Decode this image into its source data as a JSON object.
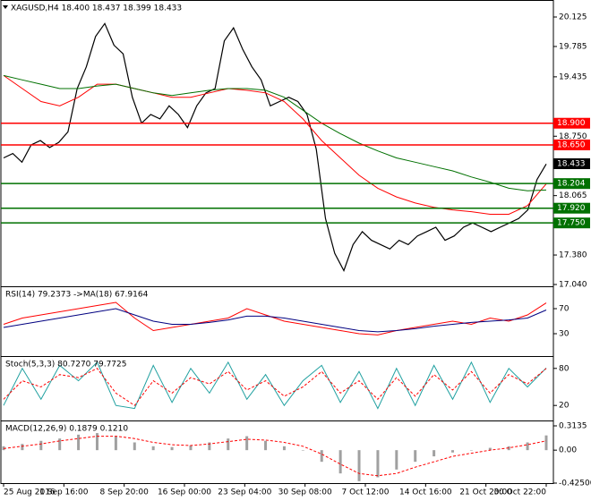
{
  "chart_data": [
    {
      "type": "line",
      "title": "XAGUSD,H4 18.400 18.437 18.399 18.433",
      "x_tick_labels": [
        "25 Aug 2016",
        "1 Sep 16:00",
        "8 Sep 20:00",
        "16 Sep 00:00",
        "23 Sep 04:00",
        "30 Sep 08:00",
        "7 Oct 12:00",
        "14 Oct 16:00",
        "21 Oct 20:00",
        "30 Oct 22:00"
      ],
      "ylim": [
        17.04,
        20.125
      ],
      "yticks": [
        20.125,
        19.785,
        19.435,
        {
          "value": 18.75,
          "label": "18.750"
        },
        18.065,
        17.725,
        {
          "value": 17.38,
          "label": "17.380"
        },
        {
          "value": 17.04,
          "label": "17.040"
        }
      ],
      "series": [
        {
          "color": "#000000",
          "values": [
            18.5,
            18.55,
            18.45,
            18.65,
            18.7,
            18.62,
            18.68,
            18.8,
            19.3,
            19.55,
            19.9,
            20.05,
            19.8,
            19.7,
            19.2,
            18.9,
            19.0,
            18.95,
            19.1,
            19.0,
            18.85,
            19.1,
            19.25,
            19.3,
            19.85,
            20.0,
            19.75,
            19.55,
            19.4,
            19.1,
            19.15,
            19.2,
            19.15,
            19.0,
            18.6,
            17.8,
            17.4,
            17.2,
            17.5,
            17.65,
            17.55,
            17.5,
            17.45,
            17.55,
            17.5,
            17.6,
            17.65,
            17.7,
            17.55,
            17.6,
            17.7,
            17.75,
            17.7,
            17.65,
            17.7,
            17.75,
            17.8,
            17.9,
            18.25,
            18.43
          ]
        },
        {
          "color": "#ff0000",
          "values": [
            19.45,
            19.3,
            19.15,
            19.1,
            19.2,
            19.35,
            19.35,
            19.3,
            19.25,
            19.2,
            19.2,
            19.25,
            19.3,
            19.28,
            19.25,
            19.15,
            18.95,
            18.7,
            18.5,
            18.3,
            18.15,
            18.05,
            17.98,
            17.93,
            17.9,
            17.88,
            17.85,
            17.85,
            17.95,
            18.2
          ]
        },
        {
          "color": "#007000",
          "values": [
            19.45,
            19.4,
            19.35,
            19.3,
            19.3,
            19.33,
            19.35,
            19.3,
            19.25,
            19.22,
            19.25,
            19.28,
            19.3,
            19.3,
            19.28,
            19.2,
            19.05,
            18.9,
            18.78,
            18.67,
            18.58,
            18.5,
            18.45,
            18.4,
            18.35,
            18.28,
            18.22,
            18.15,
            18.12,
            18.13
          ]
        }
      ],
      "levels": [
        {
          "value": 18.9,
          "label": "18.900",
          "color": "#ff0000"
        },
        {
          "value": 18.65,
          "label": "18.650",
          "color": "#ff0000"
        },
        {
          "value": 18.204,
          "label": "18.204",
          "color": "#007000"
        },
        {
          "value": 17.92,
          "label": "17.920",
          "color": "#007000"
        },
        {
          "value": 17.75,
          "label": "17.750",
          "color": "#007000"
        }
      ],
      "current_price": 18.433
    },
    {
      "type": "line",
      "title": "RSI(14) 79.2373 ->MA(18) 67.9164",
      "ylim": [
        0,
        100
      ],
      "yticks": [
        70,
        30
      ],
      "series": [
        {
          "color": "#ff0000",
          "values": [
            45,
            55,
            60,
            65,
            70,
            75,
            80,
            55,
            35,
            40,
            45,
            50,
            55,
            70,
            60,
            50,
            45,
            40,
            35,
            30,
            28,
            35,
            40,
            45,
            50,
            45,
            55,
            50,
            60,
            79.2
          ]
        },
        {
          "color": "#000080",
          "values": [
            40,
            45,
            50,
            55,
            60,
            65,
            70,
            60,
            50,
            45,
            45,
            48,
            52,
            58,
            58,
            55,
            50,
            45,
            40,
            35,
            33,
            35,
            38,
            42,
            45,
            48,
            50,
            52,
            55,
            67.9
          ]
        }
      ]
    },
    {
      "type": "line",
      "title": "Stoch(5,3,3) 80.7270 79.7725",
      "ylim": [
        0,
        100
      ],
      "yticks": [
        80,
        20
      ],
      "series": [
        {
          "color": "#20a0a0",
          "values": [
            20,
            80,
            30,
            85,
            60,
            90,
            20,
            15,
            85,
            25,
            80,
            40,
            90,
            30,
            70,
            20,
            60,
            85,
            25,
            75,
            15,
            80,
            20,
            85,
            30,
            90,
            25,
            80,
            50,
            80.7
          ]
        },
        {
          "color": "#ff0000",
          "dashed": true,
          "values": [
            30,
            60,
            50,
            70,
            65,
            80,
            40,
            20,
            60,
            40,
            65,
            55,
            75,
            45,
            60,
            35,
            50,
            75,
            40,
            60,
            30,
            65,
            35,
            70,
            45,
            75,
            40,
            70,
            55,
            79.8
          ]
        }
      ]
    },
    {
      "type": "bar",
      "title": "MACD(12,26,9) 0.1879 0.1210",
      "ylim": [
        -0.425,
        0.3135
      ],
      "yticks": [
        0.3135,
        {
          "value": 0,
          "label": "0.00"
        },
        {
          "value": -0.425,
          "label": "-0.42500"
        }
      ],
      "series": [
        {
          "color": "#a0a0a0",
          "values": [
            0.05,
            0.08,
            0.12,
            0.15,
            0.2,
            0.22,
            0.18,
            0.1,
            0.05,
            0.04,
            0.06,
            0.1,
            0.15,
            0.18,
            0.12,
            0.05,
            0.0,
            -0.15,
            -0.3,
            -0.4,
            -0.35,
            -0.25,
            -0.15,
            -0.08,
            -0.03,
            0.0,
            0.03,
            0.05,
            0.1,
            0.19
          ]
        },
        {
          "color": "#ff0000",
          "dashed": true,
          "values": [
            0.02,
            0.05,
            0.08,
            0.12,
            0.15,
            0.18,
            0.18,
            0.15,
            0.1,
            0.07,
            0.06,
            0.08,
            0.11,
            0.14,
            0.13,
            0.1,
            0.05,
            -0.05,
            -0.18,
            -0.3,
            -0.33,
            -0.3,
            -0.22,
            -0.15,
            -0.08,
            -0.04,
            0.0,
            0.03,
            0.07,
            0.12
          ]
        }
      ]
    }
  ]
}
